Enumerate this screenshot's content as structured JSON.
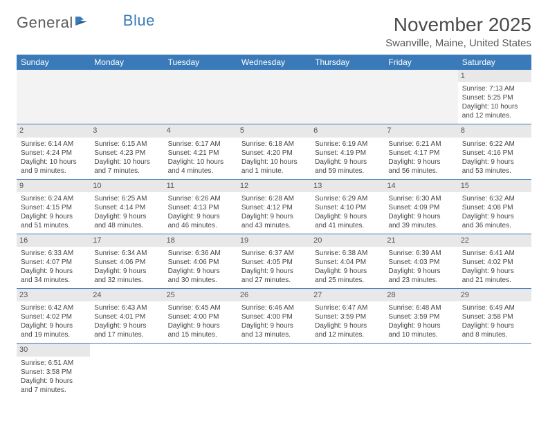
{
  "logo": {
    "general": "General",
    "blue": "Blue"
  },
  "title": "November 2025",
  "location": "Swanville, Maine, United States",
  "colors": {
    "header_bg": "#3a7ab8",
    "header_text": "#ffffff",
    "daynum_bg": "#e8e8e8",
    "empty_bg": "#f3f3f3",
    "row_border": "#3a7ab8",
    "body_text": "#444444"
  },
  "day_names": [
    "Sunday",
    "Monday",
    "Tuesday",
    "Wednesday",
    "Thursday",
    "Friday",
    "Saturday"
  ],
  "weeks": [
    [
      null,
      null,
      null,
      null,
      null,
      null,
      {
        "n": "1",
        "sunrise": "Sunrise: 7:13 AM",
        "sunset": "Sunset: 5:25 PM",
        "daylight1": "Daylight: 10 hours",
        "daylight2": "and 12 minutes."
      }
    ],
    [
      {
        "n": "2",
        "sunrise": "Sunrise: 6:14 AM",
        "sunset": "Sunset: 4:24 PM",
        "daylight1": "Daylight: 10 hours",
        "daylight2": "and 9 minutes."
      },
      {
        "n": "3",
        "sunrise": "Sunrise: 6:15 AM",
        "sunset": "Sunset: 4:23 PM",
        "daylight1": "Daylight: 10 hours",
        "daylight2": "and 7 minutes."
      },
      {
        "n": "4",
        "sunrise": "Sunrise: 6:17 AM",
        "sunset": "Sunset: 4:21 PM",
        "daylight1": "Daylight: 10 hours",
        "daylight2": "and 4 minutes."
      },
      {
        "n": "5",
        "sunrise": "Sunrise: 6:18 AM",
        "sunset": "Sunset: 4:20 PM",
        "daylight1": "Daylight: 10 hours",
        "daylight2": "and 1 minute."
      },
      {
        "n": "6",
        "sunrise": "Sunrise: 6:19 AM",
        "sunset": "Sunset: 4:19 PM",
        "daylight1": "Daylight: 9 hours",
        "daylight2": "and 59 minutes."
      },
      {
        "n": "7",
        "sunrise": "Sunrise: 6:21 AM",
        "sunset": "Sunset: 4:17 PM",
        "daylight1": "Daylight: 9 hours",
        "daylight2": "and 56 minutes."
      },
      {
        "n": "8",
        "sunrise": "Sunrise: 6:22 AM",
        "sunset": "Sunset: 4:16 PM",
        "daylight1": "Daylight: 9 hours",
        "daylight2": "and 53 minutes."
      }
    ],
    [
      {
        "n": "9",
        "sunrise": "Sunrise: 6:24 AM",
        "sunset": "Sunset: 4:15 PM",
        "daylight1": "Daylight: 9 hours",
        "daylight2": "and 51 minutes."
      },
      {
        "n": "10",
        "sunrise": "Sunrise: 6:25 AM",
        "sunset": "Sunset: 4:14 PM",
        "daylight1": "Daylight: 9 hours",
        "daylight2": "and 48 minutes."
      },
      {
        "n": "11",
        "sunrise": "Sunrise: 6:26 AM",
        "sunset": "Sunset: 4:13 PM",
        "daylight1": "Daylight: 9 hours",
        "daylight2": "and 46 minutes."
      },
      {
        "n": "12",
        "sunrise": "Sunrise: 6:28 AM",
        "sunset": "Sunset: 4:12 PM",
        "daylight1": "Daylight: 9 hours",
        "daylight2": "and 43 minutes."
      },
      {
        "n": "13",
        "sunrise": "Sunrise: 6:29 AM",
        "sunset": "Sunset: 4:10 PM",
        "daylight1": "Daylight: 9 hours",
        "daylight2": "and 41 minutes."
      },
      {
        "n": "14",
        "sunrise": "Sunrise: 6:30 AM",
        "sunset": "Sunset: 4:09 PM",
        "daylight1": "Daylight: 9 hours",
        "daylight2": "and 39 minutes."
      },
      {
        "n": "15",
        "sunrise": "Sunrise: 6:32 AM",
        "sunset": "Sunset: 4:08 PM",
        "daylight1": "Daylight: 9 hours",
        "daylight2": "and 36 minutes."
      }
    ],
    [
      {
        "n": "16",
        "sunrise": "Sunrise: 6:33 AM",
        "sunset": "Sunset: 4:07 PM",
        "daylight1": "Daylight: 9 hours",
        "daylight2": "and 34 minutes."
      },
      {
        "n": "17",
        "sunrise": "Sunrise: 6:34 AM",
        "sunset": "Sunset: 4:06 PM",
        "daylight1": "Daylight: 9 hours",
        "daylight2": "and 32 minutes."
      },
      {
        "n": "18",
        "sunrise": "Sunrise: 6:36 AM",
        "sunset": "Sunset: 4:06 PM",
        "daylight1": "Daylight: 9 hours",
        "daylight2": "and 30 minutes."
      },
      {
        "n": "19",
        "sunrise": "Sunrise: 6:37 AM",
        "sunset": "Sunset: 4:05 PM",
        "daylight1": "Daylight: 9 hours",
        "daylight2": "and 27 minutes."
      },
      {
        "n": "20",
        "sunrise": "Sunrise: 6:38 AM",
        "sunset": "Sunset: 4:04 PM",
        "daylight1": "Daylight: 9 hours",
        "daylight2": "and 25 minutes."
      },
      {
        "n": "21",
        "sunrise": "Sunrise: 6:39 AM",
        "sunset": "Sunset: 4:03 PM",
        "daylight1": "Daylight: 9 hours",
        "daylight2": "and 23 minutes."
      },
      {
        "n": "22",
        "sunrise": "Sunrise: 6:41 AM",
        "sunset": "Sunset: 4:02 PM",
        "daylight1": "Daylight: 9 hours",
        "daylight2": "and 21 minutes."
      }
    ],
    [
      {
        "n": "23",
        "sunrise": "Sunrise: 6:42 AM",
        "sunset": "Sunset: 4:02 PM",
        "daylight1": "Daylight: 9 hours",
        "daylight2": "and 19 minutes."
      },
      {
        "n": "24",
        "sunrise": "Sunrise: 6:43 AM",
        "sunset": "Sunset: 4:01 PM",
        "daylight1": "Daylight: 9 hours",
        "daylight2": "and 17 minutes."
      },
      {
        "n": "25",
        "sunrise": "Sunrise: 6:45 AM",
        "sunset": "Sunset: 4:00 PM",
        "daylight1": "Daylight: 9 hours",
        "daylight2": "and 15 minutes."
      },
      {
        "n": "26",
        "sunrise": "Sunrise: 6:46 AM",
        "sunset": "Sunset: 4:00 PM",
        "daylight1": "Daylight: 9 hours",
        "daylight2": "and 13 minutes."
      },
      {
        "n": "27",
        "sunrise": "Sunrise: 6:47 AM",
        "sunset": "Sunset: 3:59 PM",
        "daylight1": "Daylight: 9 hours",
        "daylight2": "and 12 minutes."
      },
      {
        "n": "28",
        "sunrise": "Sunrise: 6:48 AM",
        "sunset": "Sunset: 3:59 PM",
        "daylight1": "Daylight: 9 hours",
        "daylight2": "and 10 minutes."
      },
      {
        "n": "29",
        "sunrise": "Sunrise: 6:49 AM",
        "sunset": "Sunset: 3:58 PM",
        "daylight1": "Daylight: 9 hours",
        "daylight2": "and 8 minutes."
      }
    ],
    [
      {
        "n": "30",
        "sunrise": "Sunrise: 6:51 AM",
        "sunset": "Sunset: 3:58 PM",
        "daylight1": "Daylight: 9 hours",
        "daylight2": "and 7 minutes."
      },
      null,
      null,
      null,
      null,
      null,
      null
    ]
  ]
}
